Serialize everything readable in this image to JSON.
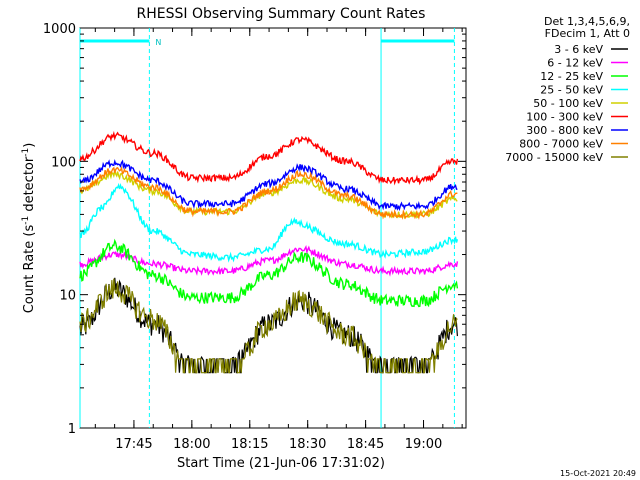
{
  "chart_data": {
    "type": "line",
    "title": "RHESSI Observing Summary Count Rates",
    "xlabel": "Start Time (21-Jun-06 17:31:02)",
    "ylabel_main": "Count Rate (s",
    "ylabel_sup1": "-1",
    "ylabel_mid": " detector",
    "ylabel_sup2": "-1",
    "ylabel_end": ")",
    "yscale": "log",
    "ylim": [
      1,
      1000
    ],
    "xlim": [
      "17:31:02",
      "19:11:00"
    ],
    "x_ticks": [
      "17:45",
      "18:00",
      "18:15",
      "18:30",
      "18:45",
      "19:00"
    ],
    "y_ticks": [
      "1",
      "10",
      "100",
      "1000"
    ],
    "legend_header": [
      "Det 1,3,4,5,6,9,",
      "FDecim 1, Att 0"
    ],
    "footer": "15-Oct-2021 20:49",
    "night_marker": "N",
    "night_intervals": [
      [
        "17:31:02",
        "17:49:00"
      ],
      [
        "18:49:00",
        "19:08:00"
      ]
    ],
    "series": [
      {
        "name": "3 - 6 keV",
        "color": "#000000",
        "x": [
          "17:31",
          "17:40",
          "17:50",
          "18:00",
          "18:10",
          "18:20",
          "18:28",
          "18:40",
          "18:50",
          "19:00",
          "19:08"
        ],
        "values": [
          5.5,
          11,
          6,
          2.8,
          2.8,
          6,
          9,
          5,
          2.8,
          2.8,
          6
        ]
      },
      {
        "name": "6 - 12 keV",
        "color": "#ff00ff",
        "x": [
          "17:31",
          "17:40",
          "17:50",
          "18:00",
          "18:10",
          "18:20",
          "18:28",
          "18:40",
          "18:50",
          "19:00",
          "19:08"
        ],
        "values": [
          17,
          20,
          17,
          15,
          15,
          18,
          22,
          17,
          15,
          15,
          17
        ]
      },
      {
        "name": "12 - 25 keV",
        "color": "#00ff00",
        "x": [
          "17:31",
          "17:40",
          "17:50",
          "18:00",
          "18:10",
          "18:20",
          "18:28",
          "18:40",
          "18:50",
          "19:00",
          "19:08"
        ],
        "values": [
          14,
          23,
          14,
          9.5,
          9.5,
          14,
          19,
          12,
          9,
          9,
          12
        ]
      },
      {
        "name": "25 - 50 keV",
        "color": "#00ffff",
        "x": [
          "17:31",
          "17:37",
          "17:41",
          "17:50",
          "18:00",
          "18:10",
          "18:20",
          "18:26",
          "18:40",
          "18:50",
          "19:00",
          "19:08"
        ],
        "values": [
          28,
          45,
          65,
          30,
          20,
          19,
          22,
          35,
          24,
          20,
          21,
          26
        ]
      },
      {
        "name": "50 - 100 keV",
        "color": "#d0d000",
        "x": [
          "17:31",
          "17:40",
          "17:50",
          "18:00",
          "18:10",
          "18:20",
          "18:28",
          "18:40",
          "18:50",
          "19:00",
          "19:08"
        ],
        "values": [
          60,
          80,
          60,
          42,
          42,
          58,
          72,
          52,
          40,
          40,
          52
        ]
      },
      {
        "name": "100 - 300 keV",
        "color": "#ff0000",
        "x": [
          "17:31",
          "17:40",
          "17:50",
          "18:00",
          "18:10",
          "18:20",
          "18:28",
          "18:40",
          "18:50",
          "19:00",
          "19:08"
        ],
        "values": [
          105,
          155,
          115,
          75,
          75,
          110,
          145,
          100,
          72,
          72,
          100
        ]
      },
      {
        "name": "300 - 800 keV",
        "color": "#0000ff",
        "x": [
          "17:31",
          "17:40",
          "17:50",
          "18:00",
          "18:10",
          "18:20",
          "18:28",
          "18:40",
          "18:50",
          "19:00",
          "19:08"
        ],
        "values": [
          70,
          98,
          72,
          48,
          48,
          68,
          90,
          62,
          46,
          46,
          65
        ]
      },
      {
        "name": "800 - 7000 keV",
        "color": "#ff8000",
        "x": [
          "17:31",
          "17:40",
          "17:50",
          "18:00",
          "18:10",
          "18:20",
          "18:28",
          "18:40",
          "18:50",
          "19:00",
          "19:08"
        ],
        "values": [
          62,
          86,
          64,
          42,
          42,
          60,
          80,
          55,
          40,
          40,
          57
        ]
      },
      {
        "name": "7000 - 15000 keV",
        "color": "#808000",
        "x": [
          "17:31",
          "17:40",
          "17:50",
          "18:00",
          "18:10",
          "18:20",
          "18:28",
          "18:40",
          "18:50",
          "19:00",
          "19:08"
        ],
        "values": [
          6,
          11,
          6.5,
          2.6,
          2.6,
          6,
          9,
          5,
          2.6,
          2.6,
          6
        ]
      }
    ]
  }
}
